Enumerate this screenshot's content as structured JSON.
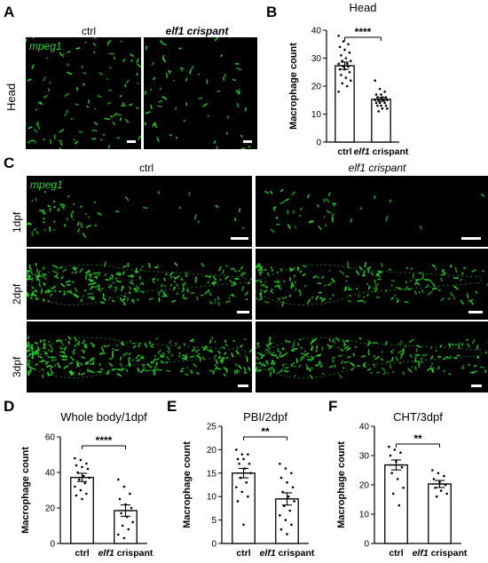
{
  "panels": {
    "A": {
      "letter": "A",
      "label_ctrl": "ctrl",
      "label_crispant": "elf1 crispant",
      "row_label": "Head",
      "marker": "mpeg1"
    },
    "B": {
      "letter": "B"
    },
    "C": {
      "letter": "C",
      "label_ctrl": "ctrl",
      "label_crispant": "elf1 crispant",
      "marker": "mpeg1",
      "rows": [
        "1dpf",
        "2dpf",
        "3dpf"
      ]
    },
    "D": {
      "letter": "D"
    },
    "E": {
      "letter": "E"
    },
    "F": {
      "letter": "F"
    }
  },
  "colors": {
    "signal": "#2bd12b",
    "background": "#000000",
    "bar_fill": "#ffffff",
    "bar_edge": "#000000"
  },
  "chart_data": [
    {
      "id": "B",
      "type": "bar",
      "title": "Head",
      "ylabel": "Macrophage count",
      "categories": [
        "ctrl",
        "elf1 crispant"
      ],
      "values": [
        27.3,
        15.3
      ],
      "sem": [
        1.3,
        0.7
      ],
      "ylim": [
        0,
        40
      ],
      "yticks": [
        0,
        10,
        20,
        30,
        40
      ],
      "significance": "****",
      "points": [
        [
          38,
          36,
          35,
          34,
          33,
          32,
          31,
          30,
          29,
          29,
          28,
          28,
          27,
          27,
          26,
          26,
          25,
          24,
          23,
          22,
          21,
          20,
          18
        ],
        [
          22,
          19,
          18,
          17,
          17,
          16,
          16,
          16,
          15,
          15,
          15,
          15,
          14,
          14,
          14,
          13,
          13,
          13,
          12,
          12,
          11
        ]
      ]
    },
    {
      "id": "D",
      "type": "bar",
      "title": "Whole body/1dpf",
      "ylabel": "Macrophage count",
      "categories": [
        "ctrl",
        "elf1 crispant"
      ],
      "values": [
        37.2,
        18.5
      ],
      "sem": [
        2.3,
        3.2
      ],
      "ylim": [
        0,
        60
      ],
      "yticks": [
        0,
        20,
        40,
        60
      ],
      "significance": "****",
      "points": [
        [
          48,
          47,
          45,
          44,
          43,
          42,
          40,
          38,
          37,
          36,
          34,
          32,
          30,
          28,
          27,
          25
        ],
        [
          36,
          32,
          28,
          25,
          22,
          20,
          17,
          15,
          12,
          10,
          8,
          5,
          3
        ]
      ]
    },
    {
      "id": "E",
      "type": "bar",
      "title": "PBI/2dpf",
      "ylabel": "Macrophage count",
      "categories": [
        "ctrl",
        "elf1 crispant"
      ],
      "values": [
        15.0,
        9.5
      ],
      "sem": [
        1.0,
        1.3
      ],
      "ylim": [
        0,
        25
      ],
      "yticks": [
        0,
        5,
        10,
        15,
        20,
        25
      ],
      "significance": "**",
      "points": [
        [
          20,
          19,
          19,
          18,
          18,
          17,
          17,
          16,
          15,
          14,
          13,
          12,
          11,
          10,
          9,
          4
        ],
        [
          17,
          16,
          15,
          14,
          13,
          12,
          11,
          10,
          9,
          8,
          7,
          6,
          5,
          4,
          3,
          2
        ]
      ]
    },
    {
      "id": "F",
      "type": "bar",
      "title": "CHT/3dpf",
      "ylabel": "Macrophage count",
      "categories": [
        "ctrl",
        "elf1 crispant"
      ],
      "values": [
        26.8,
        20.3
      ],
      "sem": [
        1.7,
        1.2
      ],
      "ylim": [
        0,
        40
      ],
      "yticks": [
        0,
        10,
        20,
        30,
        40
      ],
      "significance": "**",
      "points": [
        [
          33,
          32,
          31,
          30,
          28,
          26,
          24,
          22,
          19,
          17,
          13
        ],
        [
          25,
          24,
          23,
          22,
          21,
          20,
          19,
          18,
          17,
          16
        ]
      ]
    }
  ]
}
